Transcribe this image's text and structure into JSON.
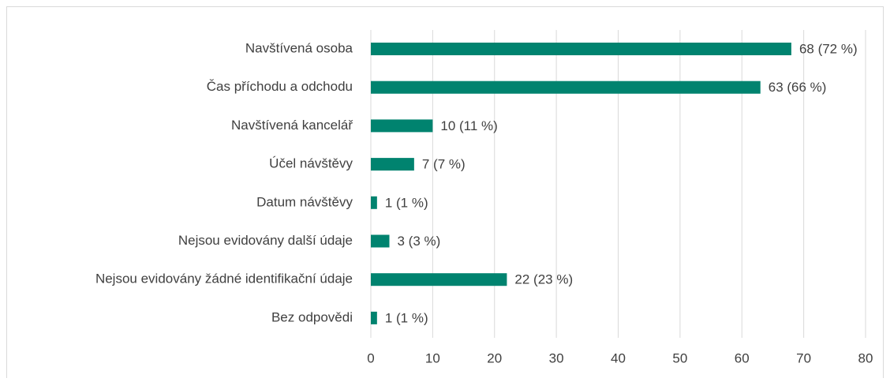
{
  "chart_data": {
    "type": "barh",
    "categories": [
      "Navštívená osoba",
      "Čas příchodu a odchodu",
      "Navštívená kancelář",
      "Účel návštěvy",
      "Datum návštěvy",
      "Nejsou evidovány další údaje",
      "Nejsou evidovány žádné identifikační údaje",
      "Bez odpovědi"
    ],
    "values": [
      68,
      63,
      10,
      7,
      1,
      3,
      22,
      1
    ],
    "value_labels": [
      "68 (72 %)",
      "63 (66 %)",
      "10 (11 %)",
      "7 (7 %)",
      "1 (1 %)",
      "3 (3 %)",
      "22 (23 %)",
      "1 (1 %)"
    ],
    "color": "#00836f",
    "xlim": [
      0,
      80
    ],
    "xticks": [
      0,
      10,
      20,
      30,
      40,
      50,
      60,
      70,
      80
    ],
    "grid": true
  }
}
